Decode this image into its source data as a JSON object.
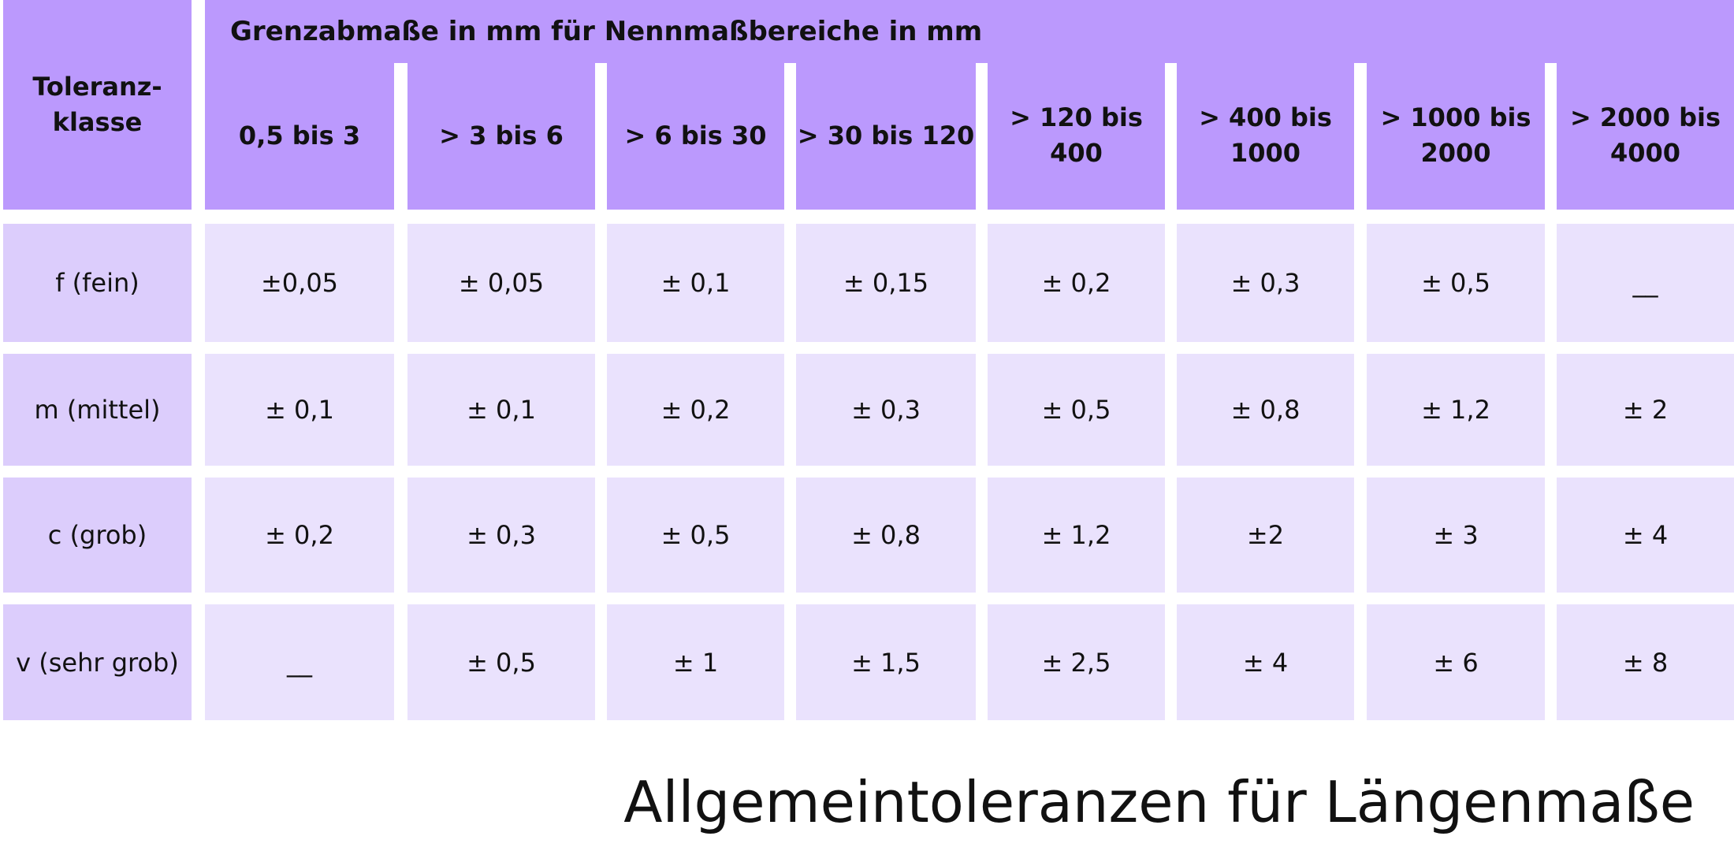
{
  "header": {
    "class_label": "Toleranz-\nklasse",
    "span_title": "Grenzabmaße in mm für Nennmaßbereiche in mm",
    "ranges": [
      "0,5 bis 3",
      "> 3 bis 6",
      "> 6 bis 30",
      "> 30 bis 120",
      "> 120 bis\n400",
      "> 400 bis\n1000",
      "> 1000 bis\n2000",
      "> 2000 bis\n4000"
    ]
  },
  "rows": [
    {
      "label": "f (fein)",
      "values": [
        "±0,05",
        "± 0,05",
        "± 0,1",
        "± 0,15",
        "± 0,2",
        "± 0,3",
        "± 0,5",
        "__"
      ]
    },
    {
      "label": "m (mittel)",
      "values": [
        "± 0,1",
        "± 0,1",
        "± 0,2",
        "± 0,3",
        "± 0,5",
        "± 0,8",
        "± 1,2",
        "± 2"
      ]
    },
    {
      "label": "c (grob)",
      "values": [
        "± 0,2",
        "± 0,3",
        "± 0,5",
        "± 0,8",
        "± 1,2",
        "±2",
        "± 3",
        "± 4"
      ]
    },
    {
      "label": "v (sehr grob)",
      "values": [
        "__",
        "± 0,5",
        "± 1",
        "± 1,5",
        "± 2,5",
        "± 4",
        "± 6",
        "± 8"
      ]
    }
  ],
  "caption": "Allgemeintoleranzen für  Längenmaße",
  "colors": {
    "header_bg": "#bb99fd",
    "label_bg": "#dccdfc",
    "value_bg": "#eae2fd"
  }
}
